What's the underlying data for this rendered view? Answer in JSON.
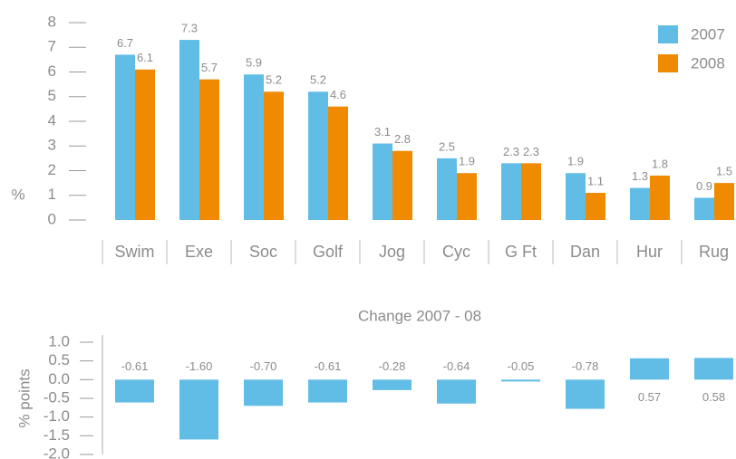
{
  "chart_data": [
    {
      "type": "bar",
      "y_label": "%",
      "categories": [
        "Swim",
        "Exe",
        "Soc",
        "Golf",
        "Jog",
        "Cyc",
        "G Ft",
        "Dan",
        "Hur",
        "Rug"
      ],
      "series": [
        {
          "name": "2007",
          "color": "#62bde6",
          "values": [
            6.7,
            7.3,
            5.9,
            5.2,
            3.1,
            2.5,
            2.3,
            1.9,
            1.3,
            0.9
          ]
        },
        {
          "name": "2008",
          "color": "#f08a00",
          "values": [
            6.1,
            5.7,
            5.2,
            4.6,
            2.8,
            1.9,
            2.3,
            1.1,
            1.8,
            1.5
          ]
        }
      ],
      "ylim": [
        0,
        8
      ],
      "yticks": [
        0,
        1,
        2,
        3,
        4,
        5,
        6,
        7,
        8
      ],
      "legend": "upper right"
    },
    {
      "type": "bar",
      "title": "Change 2007 - 08",
      "y_label": "% points",
      "color": "#62bde6",
      "values": [
        -0.61,
        -1.6,
        -0.7,
        -0.61,
        -0.28,
        -0.64,
        -0.05,
        -0.78,
        0.57,
        0.58
      ],
      "value_labels": [
        "-0.61",
        "-1.60",
        "-0.70",
        "-0.61",
        "-0.28",
        "-0.64",
        "-0.05",
        "-0.78",
        "0.57",
        "0.58"
      ],
      "ylim": [
        -2,
        1
      ],
      "yticks": [
        {
          "value": 1,
          "label": "1.0"
        },
        {
          "value": 0.5,
          "label": "0.5"
        },
        {
          "value": 0,
          "label": "0.0"
        },
        {
          "value": -0.5,
          "label": "-0.5"
        },
        {
          "value": -1,
          "label": "-1.0"
        },
        {
          "value": -1.5,
          "label": "-1.5"
        },
        {
          "value": -2,
          "label": "-2.0"
        }
      ]
    }
  ]
}
